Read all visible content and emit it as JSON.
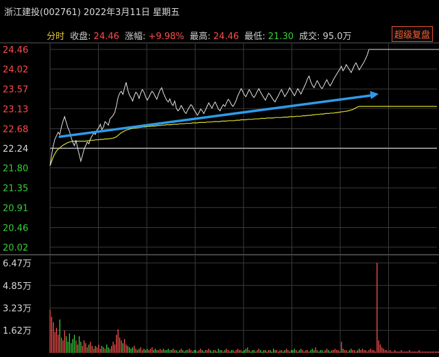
{
  "header": {
    "title": "浙江建投(002761) 2022年3月11日 星期五",
    "tab": "分时",
    "close_label": "收盘:",
    "close_value": "24.46",
    "change_label": "涨幅:",
    "change_value": "+9.98%",
    "high_label": "最高:",
    "high_value": "24.46",
    "low_label": "最低:",
    "low_value": "21.30",
    "volume_label": "成交:",
    "volume_value": "95.0万",
    "button": "超级复盘"
  },
  "colors": {
    "up": "#ff4b4b",
    "down": "#35d035",
    "price": "#e6e6e6",
    "avg": "#dcdc2a",
    "arrow": "#2f9be8",
    "grid": "#3a3a3a"
  },
  "chart_data": {
    "type": "line",
    "price_axis": {
      "ticks": [
        "24.46",
        "24.02",
        "23.57",
        "23.13",
        "22.68",
        "22.24",
        "21.80",
        "21.35",
        "20.91",
        "20.46",
        "20.02"
      ],
      "range": [
        20.02,
        24.46
      ],
      "prev_close": 22.24
    },
    "volume_axis": {
      "ticks": [
        "6.47万",
        "4.85万",
        "3.23万",
        "1.62万"
      ],
      "max": 6.47
    },
    "minutes": 240,
    "series": [
      {
        "values": [
          21.85,
          22.1,
          22.3,
          22.45,
          22.52,
          22.6,
          22.55,
          22.72,
          22.85,
          22.95,
          22.82,
          22.7,
          22.62,
          22.48,
          22.38,
          22.3,
          22.42,
          22.25,
          22.1,
          21.95,
          22.08,
          22.22,
          22.3,
          22.38,
          22.34,
          22.46,
          22.52,
          22.58,
          22.55,
          22.65,
          22.7,
          22.78,
          22.66,
          22.72,
          22.84,
          22.8,
          22.76,
          22.9,
          22.94,
          22.98,
          23.05,
          23.2,
          23.38,
          23.48,
          23.52,
          23.45,
          23.6,
          23.72,
          23.55,
          23.44,
          23.38,
          23.3,
          23.42,
          23.5,
          23.46,
          23.36,
          23.48,
          23.56,
          23.5,
          23.4,
          23.32,
          23.38,
          23.46,
          23.52,
          23.48,
          23.4,
          23.34,
          23.46,
          23.55,
          23.6,
          23.48,
          23.4,
          23.32,
          23.28,
          23.35,
          23.24,
          23.2,
          23.3,
          23.14,
          23.08,
          23.12,
          23.2,
          23.14,
          23.06,
          23.02,
          23.1,
          23.16,
          23.22,
          23.18,
          23.1,
          23.05,
          22.98,
          23.04,
          23.12,
          23.08,
          23.02,
          23.1,
          23.18,
          23.26,
          23.2,
          23.14,
          23.22,
          23.28,
          23.2,
          23.12,
          23.08,
          23.16,
          23.22,
          23.18,
          23.26,
          23.34,
          23.3,
          23.22,
          23.18,
          23.24,
          23.32,
          23.42,
          23.5,
          23.58,
          23.52,
          23.44,
          23.4,
          23.48,
          23.56,
          23.5,
          23.42,
          23.38,
          23.44,
          23.52,
          23.58,
          23.5,
          23.44,
          23.38,
          23.32,
          23.4,
          23.48,
          23.44,
          23.38,
          23.32,
          23.28,
          23.36,
          23.42,
          23.5,
          23.56,
          23.48,
          23.4,
          23.46,
          23.52,
          23.6,
          23.54,
          23.48,
          23.42,
          23.5,
          23.58,
          23.52,
          23.46,
          23.54,
          23.62,
          23.7,
          23.8,
          23.86,
          23.74,
          23.66,
          23.6,
          23.68,
          23.76,
          23.7,
          23.62,
          23.58,
          23.64,
          23.72,
          23.78,
          23.7,
          23.64,
          23.7,
          23.78,
          23.84,
          23.9,
          23.96,
          24.02,
          24.08,
          23.98,
          24.04,
          24.12,
          24.06,
          24.0,
          23.94,
          24.02,
          24.1,
          24.16,
          24.08,
          24.0,
          24.06,
          24.12,
          24.18,
          24.26,
          24.34,
          24.46,
          24.46,
          24.46,
          24.46,
          24.46,
          24.46,
          24.46,
          24.46,
          24.46,
          24.46,
          24.46,
          24.46,
          24.46,
          24.46,
          24.46,
          24.46,
          24.46,
          24.46,
          24.46,
          24.46,
          24.46,
          24.46,
          24.46,
          24.46,
          24.46,
          24.46,
          24.46,
          24.46,
          24.46,
          24.46,
          24.46,
          24.46,
          24.46,
          24.46,
          24.46,
          24.46,
          24.46,
          24.46,
          24.46,
          24.46,
          24.46,
          24.46,
          24.46,
          24.46,
          24.46
        ]
      },
      {
        "values": [
          21.85,
          21.95,
          22.05,
          22.12,
          22.18,
          22.22,
          22.25,
          22.28,
          22.31,
          22.33,
          22.35,
          22.37,
          22.38,
          22.39,
          22.4,
          22.4,
          22.4,
          22.4,
          22.4,
          22.4,
          22.4,
          22.4,
          22.4,
          22.41,
          22.41,
          22.42,
          22.42,
          22.42,
          22.43,
          22.43,
          22.43,
          22.44,
          22.44,
          22.44,
          22.45,
          22.45,
          22.45,
          22.46,
          22.46,
          22.47,
          22.48,
          22.5,
          22.53,
          22.56,
          22.59,
          22.61,
          22.63,
          22.65,
          22.66,
          22.67,
          22.68,
          22.69,
          22.69,
          22.7,
          22.7,
          22.71,
          22.71,
          22.72,
          22.72,
          22.72,
          22.73,
          22.73,
          22.73,
          22.74,
          22.74,
          22.74,
          22.75,
          22.75,
          22.75,
          22.76,
          22.76,
          22.76,
          22.77,
          22.77,
          22.77,
          22.77,
          22.78,
          22.78,
          22.78,
          22.78,
          22.79,
          22.79,
          22.79,
          22.79,
          22.8,
          22.8,
          22.8,
          22.8,
          22.81,
          22.81,
          22.81,
          22.81,
          22.82,
          22.82,
          22.82,
          22.82,
          22.82,
          22.83,
          22.83,
          22.83,
          22.83,
          22.84,
          22.84,
          22.84,
          22.84,
          22.84,
          22.85,
          22.85,
          22.85,
          22.85,
          22.86,
          22.86,
          22.86,
          22.86,
          22.86,
          22.87,
          22.87,
          22.87,
          22.88,
          22.88,
          22.88,
          22.88,
          22.89,
          22.89,
          22.89,
          22.89,
          22.9,
          22.9,
          22.9,
          22.9,
          22.91,
          22.91,
          22.91,
          22.91,
          22.92,
          22.92,
          22.92,
          22.92,
          22.92,
          22.93,
          22.93,
          22.93,
          22.93,
          22.93,
          22.94,
          22.94,
          22.94,
          22.94,
          22.95,
          22.95,
          22.95,
          22.95,
          22.96,
          22.96,
          22.96,
          22.96,
          22.97,
          22.97,
          22.97,
          22.98,
          22.98,
          22.98,
          22.99,
          22.99,
          23.0,
          23.0,
          23.0,
          23.01,
          23.01,
          23.01,
          23.02,
          23.02,
          23.02,
          23.03,
          23.03,
          23.03,
          23.04,
          23.04,
          23.05,
          23.05,
          23.06,
          23.06,
          23.07,
          23.07,
          23.08,
          23.09,
          23.1,
          23.11,
          23.13,
          23.15,
          23.17,
          23.18,
          23.18,
          23.18,
          23.18,
          23.18,
          23.18,
          23.18,
          23.18,
          23.18,
          23.18,
          23.18,
          23.18,
          23.18,
          23.18,
          23.18,
          23.18,
          23.18,
          23.18,
          23.18,
          23.18,
          23.18,
          23.18,
          23.18,
          23.18,
          23.18,
          23.18,
          23.18,
          23.18,
          23.18,
          23.18,
          23.18,
          23.18,
          23.18,
          23.18,
          23.18,
          23.18,
          23.18,
          23.18,
          23.18,
          23.18,
          23.18,
          23.18,
          23.18,
          23.18,
          23.18,
          23.18,
          23.18,
          23.18,
          23.18
        ]
      }
    ],
    "volume": [
      3.1,
      2.6,
      2.2,
      1.5,
      1.8,
      1.3,
      2.4,
      1.1,
      0.9,
      1.6,
      1.2,
      0.8,
      1.4,
      0.7,
      1.0,
      1.3,
      0.9,
      0.6,
      1.2,
      0.8,
      0.5,
      0.9,
      0.7,
      0.4,
      0.6,
      0.8,
      0.5,
      0.3,
      0.5,
      0.4,
      0.6,
      0.3,
      0.5,
      0.4,
      0.3,
      0.6,
      0.4,
      0.3,
      0.5,
      0.8,
      0.6,
      1.3,
      1.7,
      1.1,
      0.9,
      0.7,
      1.0,
      0.6,
      0.5,
      0.4,
      0.3,
      0.4,
      0.5,
      0.3,
      0.2,
      0.3,
      0.4,
      0.2,
      0.3,
      0.2,
      0.3,
      0.2,
      0.3,
      0.4,
      0.2,
      0.3,
      0.2,
      0.2,
      0.3,
      0.2,
      0.3,
      0.2,
      0.2,
      0.3,
      0.2,
      0.2,
      0.3,
      0.2,
      0.2,
      0.1,
      0.2,
      0.3,
      0.2,
      0.1,
      0.2,
      0.2,
      0.3,
      0.2,
      0.1,
      0.2,
      0.2,
      0.1,
      0.2,
      0.3,
      0.2,
      0.1,
      0.2,
      0.2,
      0.3,
      0.2,
      0.1,
      0.2,
      0.2,
      0.1,
      0.3,
      0.2,
      0.2,
      0.1,
      0.2,
      0.3,
      0.2,
      0.1,
      0.2,
      0.2,
      0.1,
      0.2,
      0.3,
      0.2,
      0.2,
      0.1,
      0.2,
      0.3,
      0.4,
      0.2,
      0.1,
      0.2,
      0.2,
      0.1,
      0.2,
      0.3,
      0.2,
      0.1,
      0.2,
      0.2,
      0.1,
      0.2,
      0.2,
      0.1,
      0.3,
      0.2,
      0.2,
      0.1,
      0.2,
      0.2,
      0.1,
      0.2,
      0.3,
      0.2,
      0.1,
      0.2,
      0.2,
      0.3,
      0.2,
      0.1,
      0.2,
      0.3,
      0.2,
      0.1,
      0.2,
      0.2,
      0.1,
      0.2,
      0.3,
      0.2,
      0.4,
      0.2,
      0.1,
      0.2,
      0.2,
      0.1,
      0.2,
      0.3,
      0.2,
      0.1,
      0.2,
      0.2,
      0.3,
      0.2,
      0.2,
      0.1,
      0.8,
      0.3,
      0.2,
      0.2,
      0.1,
      0.2,
      0.3,
      0.2,
      0.2,
      0.1,
      0.2,
      0.3,
      0.2,
      0.3,
      0.2,
      0.2,
      0.1,
      0.2,
      0.3,
      0.2,
      0.2,
      0.1,
      6.47,
      0.9,
      0.6,
      0.4,
      0.3,
      0.2,
      0.2,
      0.1,
      0.2,
      0.1,
      0.1,
      0.2,
      0.1,
      0.1,
      0.1,
      0.2,
      0.1,
      0.1,
      0.1,
      0.1,
      0.2,
      0.1,
      0.1,
      0.1,
      0.1,
      0.1,
      0.2,
      0.1,
      0.1,
      0.1,
      0.1,
      0.1,
      0.1,
      0.1,
      0.1,
      0.1,
      0.1,
      0.1,
      0.1,
      0.1,
      0.1,
      0.1
    ]
  }
}
